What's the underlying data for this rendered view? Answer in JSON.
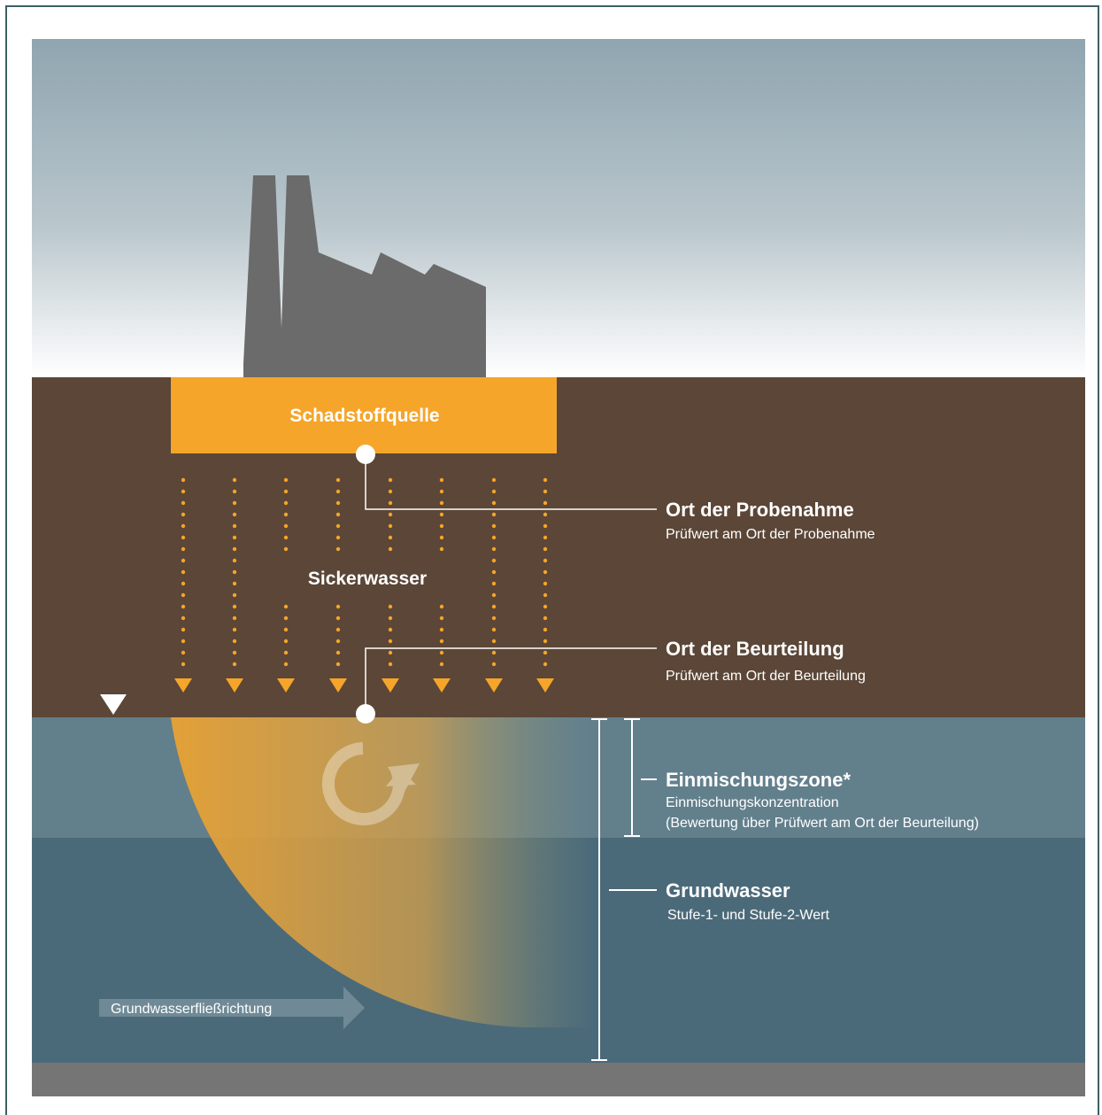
{
  "labels": {
    "source": "Schadstoffquelle",
    "seepage": "Sickerwasser",
    "sampling_title": "Ort der Probenahme",
    "sampling_sub": "Prüfwert am Ort der Probenahme",
    "assessment_title": "Ort der Beurteilung",
    "assessment_sub": "Prüfwert am Ort der Beurteilung",
    "mixing_title": "Einmischungszone*",
    "mixing_sub1": "Einmischungskonzentration",
    "mixing_sub2": "(Bewertung über Prüfwert am Ort der Beurteilung)",
    "groundwater_title": "Grundwasser",
    "groundwater_sub": "Stufe-1- und Stufe-2-Wert",
    "flow_direction": "Grundwasserfließrichtung"
  },
  "colors": {
    "sky_top": "#8fa5b0",
    "sky_bottom": "#ffffff",
    "soil": "#5b4637",
    "source": "#f5a52a",
    "seepage_dots": "#f5a52a",
    "groundwater_upper": "#627f8c",
    "groundwater_lower": "#4b6a79",
    "bedrock": "#757575",
    "factory": "#6b6b6b",
    "plume": "#e8a032",
    "text": "#ffffff"
  },
  "icons": {
    "water_table": "inverted-triangle-icon",
    "mixing": "circular-arrow-icon",
    "flow": "right-arrow-icon"
  }
}
